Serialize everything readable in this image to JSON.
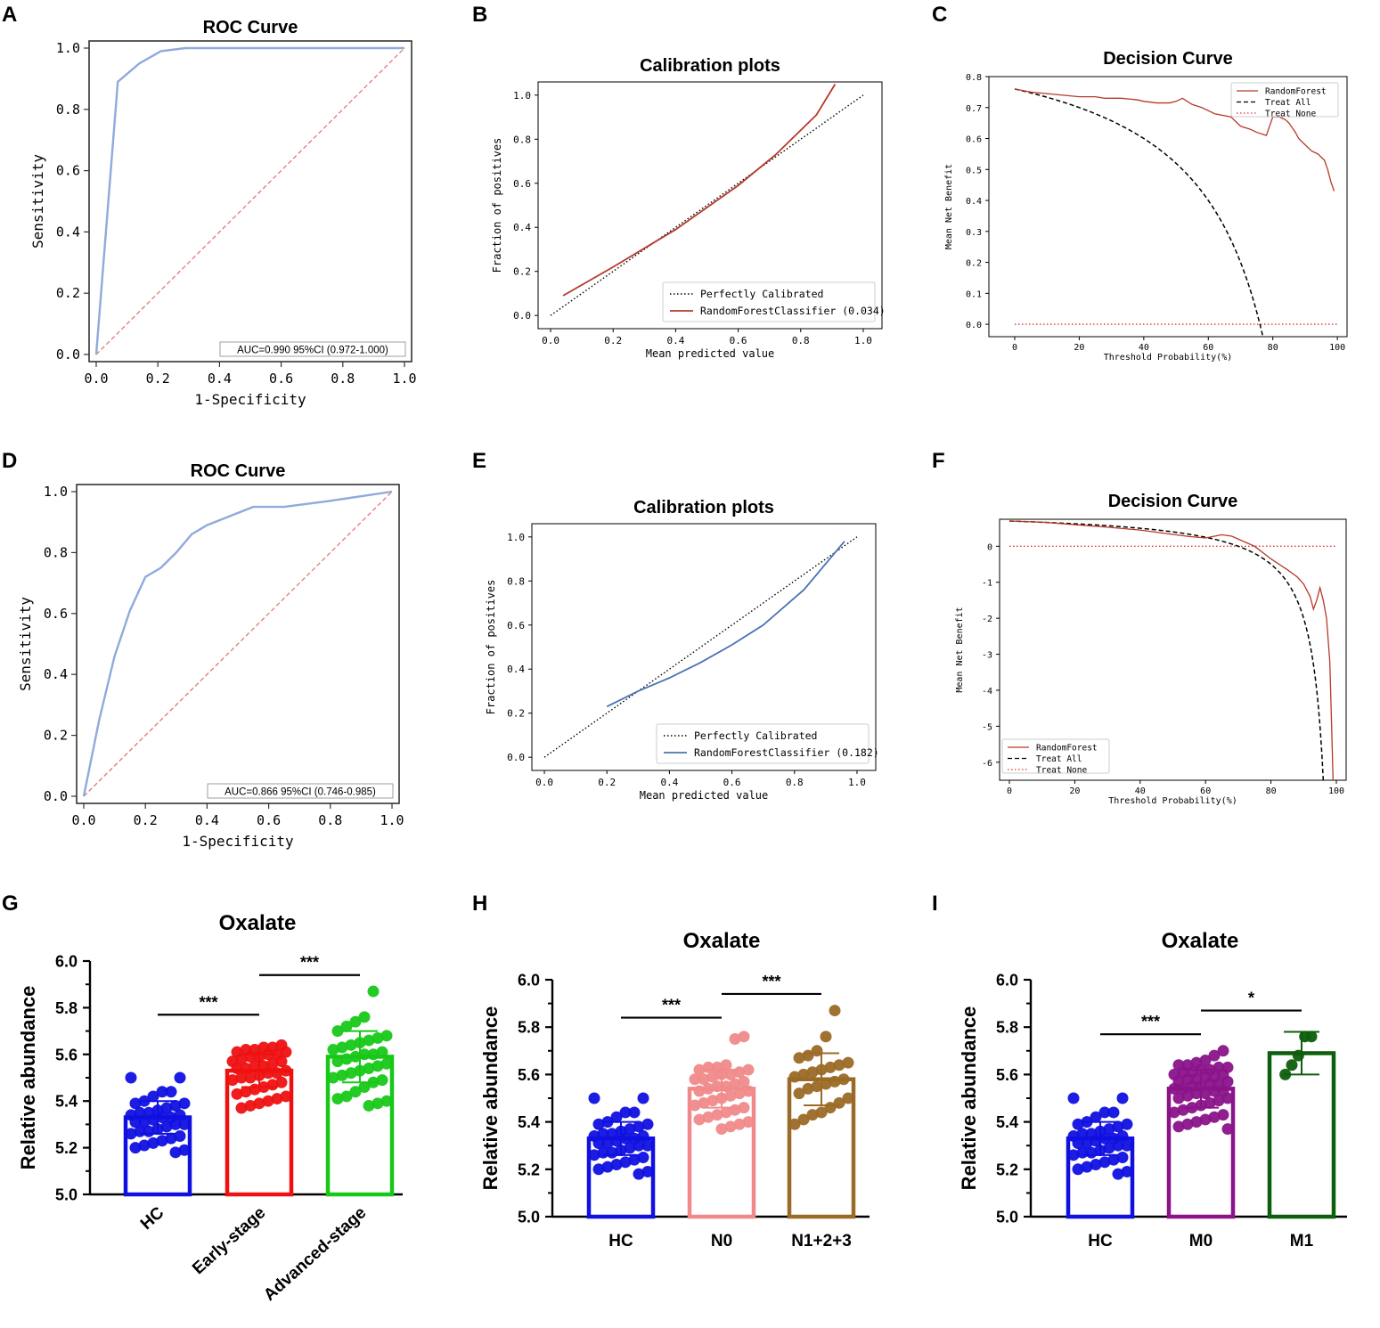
{
  "panel_labels": [
    "A",
    "B",
    "C",
    "D",
    "E",
    "F",
    "G",
    "H",
    "I"
  ],
  "chart_data": [
    {
      "id": "A",
      "type": "line",
      "title": "ROC Curve",
      "xlabel": "1-Specificity",
      "ylabel": "Sensitivity",
      "xlim": [
        0,
        1
      ],
      "ylim": [
        0,
        1
      ],
      "xticks": [
        "0.0",
        "0.2",
        "0.4",
        "0.6",
        "0.8",
        "1.0"
      ],
      "yticks": [
        "0.0",
        "0.2",
        "0.4",
        "0.6",
        "0.8",
        "1.0"
      ],
      "annotation": "AUC=0.990  95%CI (0.972-1.000)",
      "roc_x": [
        0.0,
        0.07,
        0.14,
        0.21,
        0.29,
        1.0
      ],
      "roc_y": [
        0.0,
        0.89,
        0.95,
        0.99,
        1.0,
        1.0
      ],
      "colors": {
        "roc": "#8faadc",
        "diag": "#e07a6e"
      }
    },
    {
      "id": "B",
      "type": "line",
      "title": "Calibration plots",
      "xlabel": "Mean predicted value",
      "ylabel": "Fraction of positives",
      "xlim": [
        0,
        1
      ],
      "ylim": [
        0,
        1
      ],
      "xticks": [
        "0.0",
        "0.2",
        "0.4",
        "0.6",
        "0.8",
        "1.0"
      ],
      "yticks": [
        "0.0",
        "0.2",
        "0.4",
        "0.6",
        "0.8",
        "1.0"
      ],
      "legend": [
        "Perfectly Calibrated",
        "RandomForestClassifier (0.034)"
      ],
      "curve_x": [
        0.04,
        0.2,
        0.4,
        0.6,
        0.72,
        0.85,
        0.91
      ],
      "curve_y": [
        0.09,
        0.22,
        0.39,
        0.59,
        0.73,
        0.91,
        1.05
      ],
      "colors": {
        "curve": "#b5392b",
        "ref": "#000000"
      }
    },
    {
      "id": "C",
      "type": "line",
      "title": "Decision Curve",
      "xlabel": "Threshold Probability(%)",
      "ylabel": "Mean Net Benefit",
      "xlim": [
        -8,
        103
      ],
      "ylim": [
        -0.04,
        0.8
      ],
      "xticks": [
        "0",
        "20",
        "40",
        "60",
        "80",
        "100"
      ],
      "yticks": [
        "0.0",
        "0.1",
        "0.2",
        "0.3",
        "0.4",
        "0.5",
        "0.6",
        "0.7",
        "0.8"
      ],
      "legend": [
        "RandomForest",
        "Treat All",
        "Treat None"
      ],
      "rf_x": [
        0,
        5,
        10,
        15,
        20,
        25,
        28,
        33,
        38,
        40,
        44,
        48,
        50,
        52,
        55,
        58,
        62,
        67,
        70,
        73,
        75,
        78,
        80,
        82,
        84,
        85,
        87,
        88,
        90,
        92,
        94,
        96,
        97,
        98,
        99
      ],
      "rf_y": [
        0.76,
        0.75,
        0.745,
        0.74,
        0.735,
        0.735,
        0.73,
        0.73,
        0.725,
        0.72,
        0.715,
        0.715,
        0.72,
        0.73,
        0.71,
        0.7,
        0.68,
        0.67,
        0.64,
        0.63,
        0.62,
        0.61,
        0.67,
        0.67,
        0.66,
        0.65,
        0.62,
        0.6,
        0.58,
        0.56,
        0.55,
        0.53,
        0.5,
        0.46,
        0.43
      ],
      "treat_all_prev": 0.76,
      "colors": {
        "rf": "#b5392b",
        "all": "#000000",
        "none": "#e03030"
      }
    },
    {
      "id": "D",
      "type": "line",
      "title": "ROC Curve",
      "xlabel": "1-Specificity",
      "ylabel": "Sensitivity",
      "xlim": [
        0,
        1
      ],
      "ylim": [
        0,
        1
      ],
      "xticks": [
        "0.0",
        "0.2",
        "0.4",
        "0.6",
        "0.8",
        "1.0"
      ],
      "yticks": [
        "0.0",
        "0.2",
        "0.4",
        "0.6",
        "0.8",
        "1.0"
      ],
      "annotation": "AUC=0.866  95%CI (0.746-0.985)",
      "roc_x": [
        0.0,
        0.05,
        0.1,
        0.15,
        0.2,
        0.25,
        0.3,
        0.35,
        0.4,
        0.55,
        0.65,
        0.8,
        1.0
      ],
      "roc_y": [
        0.0,
        0.25,
        0.46,
        0.61,
        0.72,
        0.75,
        0.8,
        0.86,
        0.89,
        0.95,
        0.95,
        0.97,
        1.0
      ],
      "colors": {
        "roc": "#8faadc",
        "diag": "#e07a6e"
      }
    },
    {
      "id": "E",
      "type": "line",
      "title": "Calibration plots",
      "xlabel": "Mean predicted value",
      "ylabel": "Fraction of positives",
      "xlim": [
        0,
        1
      ],
      "ylim": [
        0,
        1
      ],
      "xticks": [
        "0.0",
        "0.2",
        "0.4",
        "0.6",
        "0.8",
        "1.0"
      ],
      "yticks": [
        "0.0",
        "0.2",
        "0.4",
        "0.6",
        "0.8",
        "1.0"
      ],
      "legend": [
        "Perfectly Calibrated",
        "RandomForestClassifier (0.182)"
      ],
      "curve_x": [
        0.2,
        0.3,
        0.4,
        0.5,
        0.6,
        0.7,
        0.83,
        0.96
      ],
      "curve_y": [
        0.23,
        0.3,
        0.36,
        0.43,
        0.51,
        0.6,
        0.76,
        0.98
      ],
      "colors": {
        "curve": "#4a72b5",
        "ref": "#000000"
      }
    },
    {
      "id": "F",
      "type": "line",
      "title": "Decision Curve",
      "xlabel": "Threshold Probability(%)",
      "ylabel": "Mean Net Benefit",
      "xlim": [
        -3,
        103
      ],
      "ylim": [
        -6.5,
        0.75
      ],
      "xticks": [
        "0",
        "20",
        "40",
        "60",
        "80",
        "100"
      ],
      "yticks": [
        "-6",
        "-5",
        "-4",
        "-3",
        "-2",
        "-1",
        "0"
      ],
      "legend": [
        "RandomForest",
        "Treat All",
        "Treat None"
      ],
      "rf_x": [
        0,
        10,
        20,
        30,
        40,
        50,
        55,
        60,
        65,
        68,
        70,
        75,
        80,
        85,
        88,
        90,
        92,
        93,
        94,
        95,
        96,
        97,
        98,
        98.5,
        99
      ],
      "rf_y": [
        0.7,
        0.67,
        0.6,
        0.53,
        0.45,
        0.33,
        0.27,
        0.23,
        0.32,
        0.28,
        0.2,
        0.0,
        -0.35,
        -0.65,
        -0.85,
        -1.05,
        -1.4,
        -1.75,
        -1.5,
        -1.15,
        -1.5,
        -2.0,
        -3.2,
        -4.8,
        -6.5
      ],
      "treat_all_prev": 0.7,
      "colors": {
        "rf": "#b5392b",
        "all": "#000000",
        "none": "#e03030"
      }
    },
    {
      "id": "G",
      "type": "bar",
      "title": "Oxalate",
      "ylabel": "Relative abundance",
      "ylim": [
        5.0,
        6.0
      ],
      "yticks": [
        "5.0",
        "5.2",
        "5.4",
        "5.6",
        "5.8",
        "6.0"
      ],
      "categories": [
        "HC",
        "Early-stage",
        "Advanced-stage"
      ],
      "values": [
        5.33,
        5.53,
        5.59
      ],
      "sd": [
        0.07,
        0.07,
        0.11
      ],
      "colors": [
        "#1010e0",
        "#ee1111",
        "#18c818"
      ],
      "rotate_labels": true,
      "significance": [
        {
          "from": 0,
          "to": 1,
          "label": "***",
          "y": 5.77
        },
        {
          "from": 1,
          "to": 2,
          "label": "***",
          "y": 5.94
        }
      ],
      "points": [
        [
          5.5,
          5.5,
          5.44,
          5.44,
          5.42,
          5.4,
          5.39,
          5.39,
          5.38,
          5.37,
          5.36,
          5.35,
          5.35,
          5.34,
          5.34,
          5.33,
          5.33,
          5.32,
          5.31,
          5.31,
          5.3,
          5.3,
          5.29,
          5.28,
          5.27,
          5.27,
          5.26,
          5.25,
          5.24,
          5.23,
          5.22,
          5.21,
          5.2,
          5.19,
          5.18
        ],
        [
          5.64,
          5.63,
          5.63,
          5.62,
          5.62,
          5.61,
          5.61,
          5.6,
          5.6,
          5.59,
          5.59,
          5.58,
          5.57,
          5.57,
          5.56,
          5.55,
          5.55,
          5.54,
          5.54,
          5.53,
          5.52,
          5.52,
          5.51,
          5.5,
          5.5,
          5.49,
          5.48,
          5.47,
          5.46,
          5.45,
          5.44,
          5.43,
          5.42,
          5.41,
          5.4,
          5.39,
          5.38,
          5.37
        ],
        [
          5.87,
          5.76,
          5.74,
          5.72,
          5.7,
          5.68,
          5.67,
          5.66,
          5.65,
          5.64,
          5.63,
          5.62,
          5.61,
          5.6,
          5.6,
          5.59,
          5.58,
          5.57,
          5.56,
          5.55,
          5.54,
          5.53,
          5.52,
          5.51,
          5.5,
          5.49,
          5.48,
          5.46,
          5.44,
          5.42,
          5.41,
          5.4,
          5.39,
          5.38
        ]
      ]
    },
    {
      "id": "H",
      "type": "bar",
      "title": "Oxalate",
      "ylabel": "Relative abundance",
      "ylim": [
        5.0,
        6.0
      ],
      "yticks": [
        "5.0",
        "5.2",
        "5.4",
        "5.6",
        "5.8",
        "6.0"
      ],
      "categories": [
        "HC",
        "N0",
        "N1+2+3"
      ],
      "values": [
        5.33,
        5.54,
        5.58
      ],
      "sd": [
        0.07,
        0.08,
        0.11
      ],
      "colors": [
        "#1010e0",
        "#f08a8a",
        "#9a6a26"
      ],
      "rotate_labels": false,
      "significance": [
        {
          "from": 0,
          "to": 1,
          "label": "***",
          "y": 5.84
        },
        {
          "from": 1,
          "to": 2,
          "label": "***",
          "y": 5.94
        }
      ],
      "points": [
        [
          5.5,
          5.5,
          5.44,
          5.44,
          5.42,
          5.4,
          5.39,
          5.39,
          5.38,
          5.37,
          5.36,
          5.35,
          5.35,
          5.34,
          5.34,
          5.33,
          5.33,
          5.32,
          5.31,
          5.31,
          5.3,
          5.3,
          5.29,
          5.28,
          5.27,
          5.27,
          5.26,
          5.25,
          5.24,
          5.23,
          5.22,
          5.21,
          5.2,
          5.19,
          5.18
        ],
        [
          5.76,
          5.75,
          5.64,
          5.63,
          5.63,
          5.62,
          5.62,
          5.61,
          5.6,
          5.6,
          5.59,
          5.58,
          5.58,
          5.57,
          5.56,
          5.55,
          5.55,
          5.54,
          5.53,
          5.53,
          5.52,
          5.51,
          5.5,
          5.49,
          5.48,
          5.47,
          5.46,
          5.45,
          5.44,
          5.43,
          5.42,
          5.41,
          5.4,
          5.39,
          5.38,
          5.37
        ],
        [
          5.87,
          5.76,
          5.7,
          5.68,
          5.67,
          5.65,
          5.64,
          5.63,
          5.62,
          5.61,
          5.6,
          5.59,
          5.58,
          5.57,
          5.56,
          5.55,
          5.54,
          5.52,
          5.5,
          5.48,
          5.46,
          5.44,
          5.43,
          5.41,
          5.39
        ]
      ]
    },
    {
      "id": "I",
      "type": "bar",
      "title": "Oxalate",
      "ylabel": "Relative abundance",
      "ylim": [
        5.0,
        6.0
      ],
      "yticks": [
        "5.0",
        "5.2",
        "5.4",
        "5.6",
        "5.8",
        "6.0"
      ],
      "categories": [
        "HC",
        "M0",
        "M1"
      ],
      "values": [
        5.33,
        5.54,
        5.69
      ],
      "sd": [
        0.07,
        0.08,
        0.09
      ],
      "colors": [
        "#1010e0",
        "#8a138a",
        "#0d5e0d"
      ],
      "rotate_labels": false,
      "significance": [
        {
          "from": 0,
          "to": 1,
          "label": "***",
          "y": 5.77
        },
        {
          "from": 1,
          "to": 2,
          "label": "*",
          "y": 5.87
        }
      ],
      "points": [
        [
          5.5,
          5.5,
          5.44,
          5.44,
          5.42,
          5.4,
          5.39,
          5.39,
          5.38,
          5.37,
          5.36,
          5.35,
          5.35,
          5.34,
          5.34,
          5.33,
          5.33,
          5.32,
          5.31,
          5.31,
          5.3,
          5.3,
          5.29,
          5.28,
          5.27,
          5.27,
          5.26,
          5.25,
          5.24,
          5.23,
          5.22,
          5.21,
          5.2,
          5.19,
          5.18
        ],
        [
          5.7,
          5.68,
          5.66,
          5.65,
          5.64,
          5.64,
          5.63,
          5.63,
          5.62,
          5.62,
          5.61,
          5.61,
          5.6,
          5.6,
          5.59,
          5.59,
          5.58,
          5.58,
          5.57,
          5.57,
          5.56,
          5.56,
          5.55,
          5.55,
          5.54,
          5.54,
          5.53,
          5.53,
          5.52,
          5.52,
          5.51,
          5.5,
          5.5,
          5.49,
          5.48,
          5.47,
          5.46,
          5.45,
          5.44,
          5.43,
          5.42,
          5.41,
          5.4,
          5.39,
          5.38,
          5.37
        ],
        [
          5.76,
          5.76,
          5.68,
          5.64,
          5.6
        ]
      ]
    }
  ]
}
